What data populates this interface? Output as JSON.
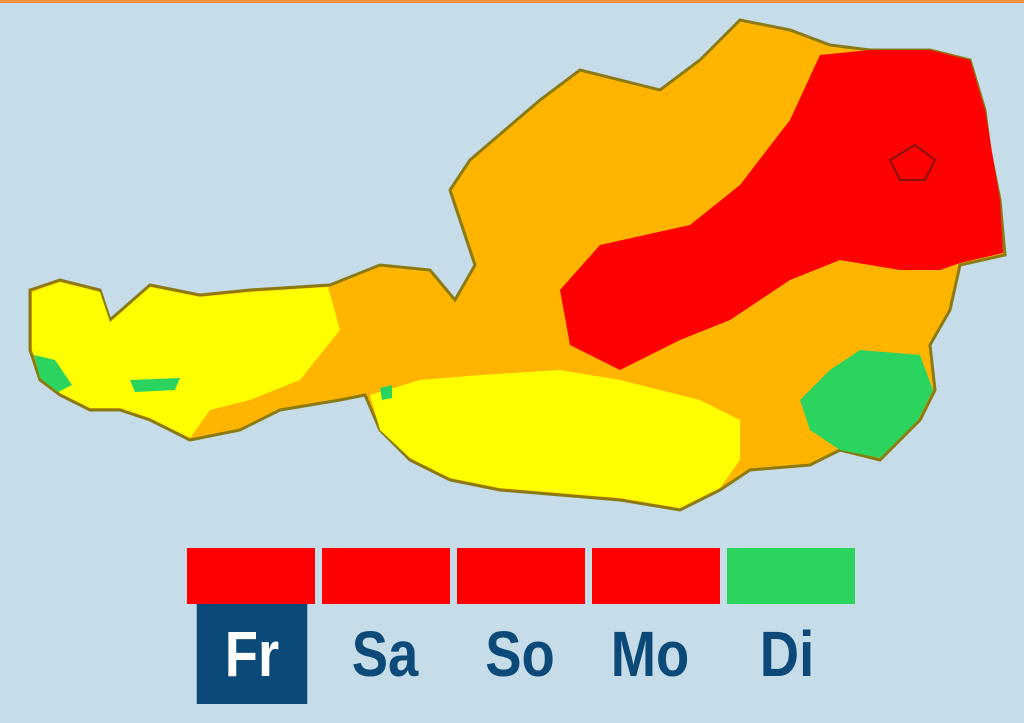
{
  "colors": {
    "background": "#c6dce9",
    "level_red": "#ff0000",
    "level_orange": "#ffb400",
    "level_yellow": "#ffff00",
    "level_green": "#2bd45e",
    "selected_day": "#0b4a78",
    "border": "#8a7a10"
  },
  "days": [
    {
      "label": "Fr",
      "level_color": "#ff0000",
      "selected": true
    },
    {
      "label": "Sa",
      "level_color": "#ff0000",
      "selected": false
    },
    {
      "label": "So",
      "level_color": "#ff0000",
      "selected": false
    },
    {
      "label": "Mo",
      "level_color": "#ff0000",
      "selected": false
    },
    {
      "label": "Di",
      "level_color": "#2bd45e",
      "selected": false
    }
  ]
}
